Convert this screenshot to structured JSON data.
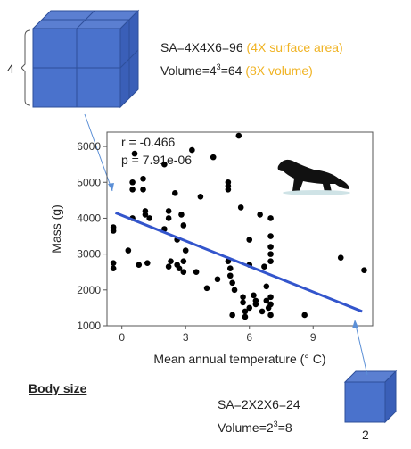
{
  "chart_data": {
    "type": "scatter",
    "annotations": [
      "r = -0.466",
      "p = 7.91e-06"
    ],
    "xlabel": "Mean annual temperature (° C)",
    "ylabel": "Mass (g)",
    "xlim": [
      -0.7,
      11.8
    ],
    "ylim": [
      1000,
      6400
    ],
    "xticks": [
      0,
      3,
      6,
      9
    ],
    "yticks": [
      1000,
      2000,
      3000,
      4000,
      5000,
      6000
    ],
    "series": [
      {
        "mode": "markers",
        "color": "#000000",
        "x": [
          -0.4,
          -0.4,
          -0.4,
          -0.4,
          0.3,
          0.5,
          0.5,
          0.5,
          0.6,
          0.8,
          1.0,
          1.0,
          1.1,
          1.1,
          1.3,
          1.2,
          2.0,
          2.0,
          2.2,
          2.2,
          2.3,
          2.2,
          2.5,
          2.6,
          2.6,
          2.7,
          2.8,
          2.9,
          2.9,
          2.9,
          3.0,
          3.3,
          3.5,
          3.7,
          4.0,
          4.3,
          4.5,
          5.0,
          5.0,
          5.0,
          5.0,
          5.1,
          5.1,
          5.2,
          5.2,
          5.3,
          5.5,
          5.6,
          5.7,
          5.7,
          5.8,
          5.8,
          6.0,
          6.0,
          6.0,
          6.2,
          6.3,
          6.3,
          6.5,
          6.6,
          6.7,
          6.8,
          6.8,
          6.9,
          7.0,
          7.0,
          7.0,
          7.0,
          7.0,
          7.0,
          7.0,
          7.0,
          8.6,
          10.3,
          11.4
        ],
        "values": [
          3750,
          3650,
          2750,
          2600,
          3100,
          4000,
          4800,
          5000,
          5800,
          2700,
          4800,
          5100,
          4100,
          4200,
          4000,
          2750,
          3700,
          5500,
          4200,
          4000,
          2800,
          2650,
          4700,
          3400,
          2700,
          2600,
          4100,
          3800,
          2500,
          2800,
          3100,
          5900,
          2500,
          4600,
          2050,
          5700,
          2300,
          5000,
          4900,
          4800,
          2800,
          2600,
          2400,
          2200,
          1300,
          2000,
          6300,
          4300,
          1800,
          1650,
          1400,
          1250,
          3400,
          2700,
          1500,
          1850,
          1700,
          1600,
          4100,
          1400,
          2650,
          2100,
          1700,
          1500,
          4000,
          3500,
          3200,
          3000,
          2800,
          1800,
          1600,
          1300,
          1300,
          2900,
          2550
        ]
      },
      {
        "mode": "line",
        "color": "#3355cc",
        "x": [
          -0.3,
          11.3
        ],
        "values": [
          4150,
          1400
        ]
      }
    ]
  },
  "annotations": {
    "big_edge": "4",
    "big_sa": "SA=4X4X6=96",
    "big_sa_note": "(4X surface area)",
    "big_vol": "Volume=4",
    "big_vol_exp": "3",
    "big_vol_result": "=64",
    "big_vol_note": "(8X volume)",
    "heading": "Body size",
    "small_sa": "SA=2X2X6=24",
    "small_vol": "Volume=2",
    "small_vol_exp": "3",
    "small_vol_result": "=8",
    "small_edge": "2"
  }
}
